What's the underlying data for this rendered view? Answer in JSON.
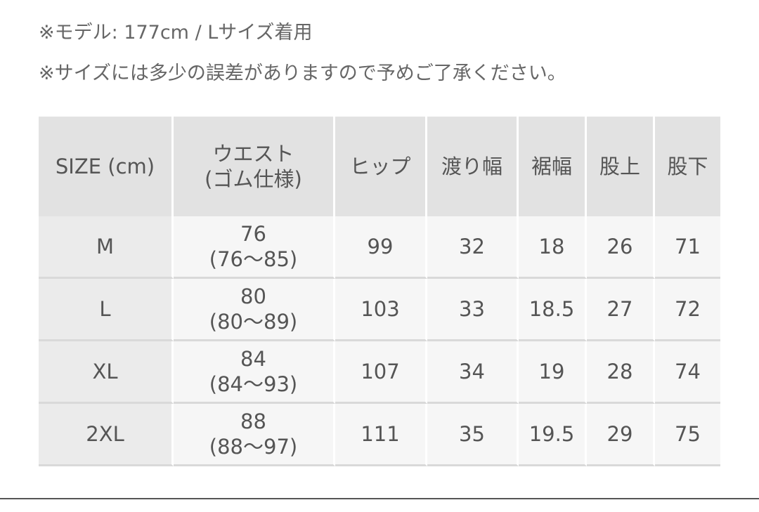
{
  "notes": [
    "※モデル: 177cm / Lサイズ着用",
    "※サイズには多少の誤差がありますので予めご了承ください。"
  ],
  "table": {
    "headers": [
      {
        "line1": "SIZE (cm)",
        "line2": ""
      },
      {
        "line1": "ウエスト",
        "line2": "(ゴム仕様)"
      },
      {
        "line1": "ヒップ",
        "line2": ""
      },
      {
        "line1": "渡り幅",
        "line2": ""
      },
      {
        "line1": "裾幅",
        "line2": ""
      },
      {
        "line1": "股上",
        "line2": ""
      },
      {
        "line1": "股下",
        "line2": ""
      }
    ],
    "rows": [
      {
        "size": "M",
        "waist": "76",
        "waist_range": "(76〜85)",
        "hip": "99",
        "thigh": "32",
        "hem": "18",
        "rise": "26",
        "inseam": "71"
      },
      {
        "size": "L",
        "waist": "80",
        "waist_range": "(80〜89)",
        "hip": "103",
        "thigh": "33",
        "hem": "18.5",
        "rise": "27",
        "inseam": "72"
      },
      {
        "size": "XL",
        "waist": "84",
        "waist_range": "(84〜93)",
        "hip": "107",
        "thigh": "34",
        "hem": "19",
        "rise": "28",
        "inseam": "74"
      },
      {
        "size": "2XL",
        "waist": "88",
        "waist_range": "(88〜97)",
        "hip": "111",
        "thigh": "35",
        "hem": "19.5",
        "rise": "29",
        "inseam": "75"
      }
    ]
  }
}
